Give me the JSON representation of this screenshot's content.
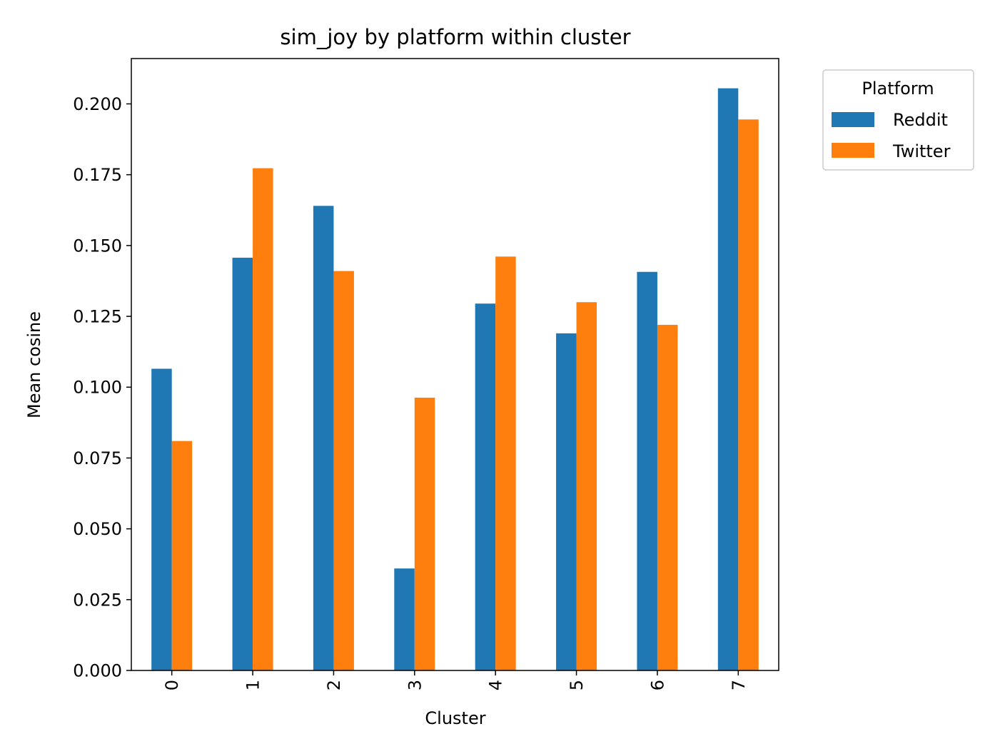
{
  "chart_data": {
    "type": "bar",
    "title": "sim_joy by platform within cluster",
    "xlabel": "Cluster",
    "ylabel": "Mean cosine",
    "categories": [
      "0",
      "1",
      "2",
      "3",
      "4",
      "5",
      "6",
      "7"
    ],
    "series": [
      {
        "name": "Reddit",
        "color": "#1f77b4",
        "values": [
          0.1065,
          0.1457,
          0.164,
          0.036,
          0.1295,
          0.119,
          0.1407,
          0.2055
        ]
      },
      {
        "name": "Twitter",
        "color": "#ff7f0e",
        "values": [
          0.081,
          0.1773,
          0.141,
          0.0963,
          0.1461,
          0.13,
          0.122,
          0.1945
        ]
      }
    ],
    "ylim": [
      0,
      0.216
    ],
    "yticks": [
      "0.000",
      "0.025",
      "0.050",
      "0.075",
      "0.100",
      "0.125",
      "0.150",
      "0.175",
      "0.200"
    ],
    "ytick_values": [
      0,
      0.025,
      0.05,
      0.075,
      0.1,
      0.125,
      0.15,
      0.175,
      0.2
    ],
    "grid": false,
    "legend": {
      "title": "Platform",
      "placement": "outside-top-right"
    }
  }
}
